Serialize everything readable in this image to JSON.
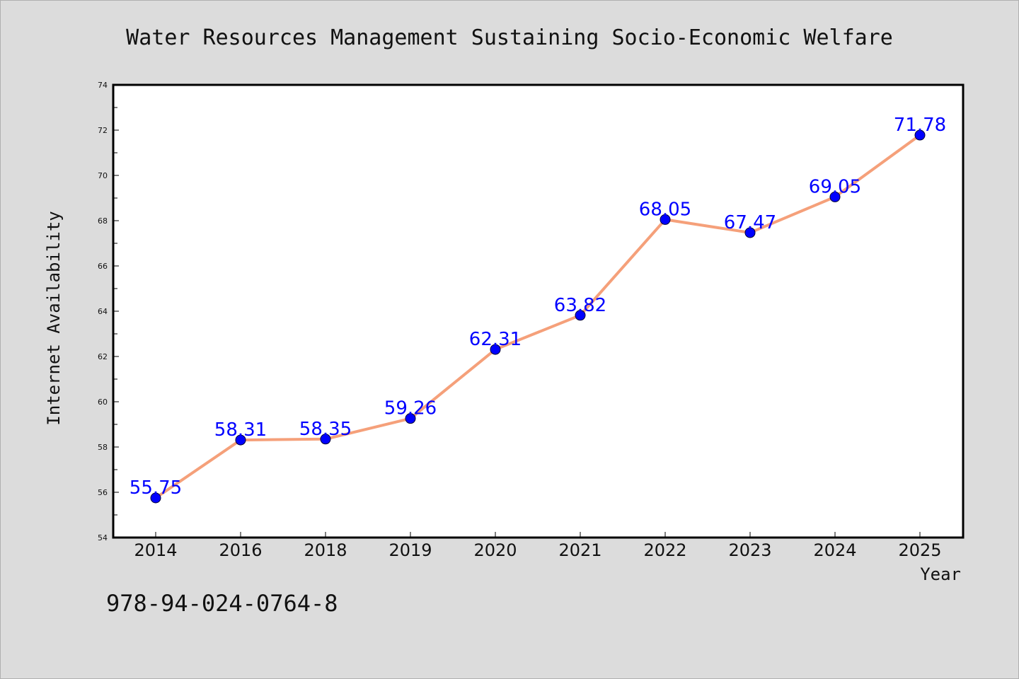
{
  "colors": {
    "background": "#dcdcdc",
    "plot_background": "#ffffff",
    "line": "#f5a07a",
    "marker": "#0000ff",
    "data_label": "#0000ff"
  },
  "footer": {
    "code": "978-94-024-0764-8"
  },
  "chart_data": {
    "type": "line",
    "title": "Water Resources Management Sustaining Socio-Economic Welfare",
    "xlabel": "Year",
    "ylabel": "Internet Availability",
    "categories": [
      "2014",
      "2016",
      "2018",
      "2019",
      "2020",
      "2021",
      "2022",
      "2023",
      "2024",
      "2025"
    ],
    "series": [
      {
        "values": [
          55.75,
          58.31,
          58.35,
          59.26,
          62.31,
          63.82,
          68.05,
          67.47,
          69.05,
          71.78
        ],
        "labels": [
          "55.75",
          "58.31",
          "58.35",
          "59.26",
          "62.31",
          "63.82",
          "68.05",
          "67.47",
          "69.05",
          "71.78"
        ]
      }
    ],
    "ylim": [
      54,
      74
    ],
    "yticks": [
      "54",
      "56",
      "58",
      "60",
      "62",
      "64",
      "66",
      "68",
      "70",
      "72",
      "74"
    ],
    "grid": false,
    "legend": "none"
  }
}
